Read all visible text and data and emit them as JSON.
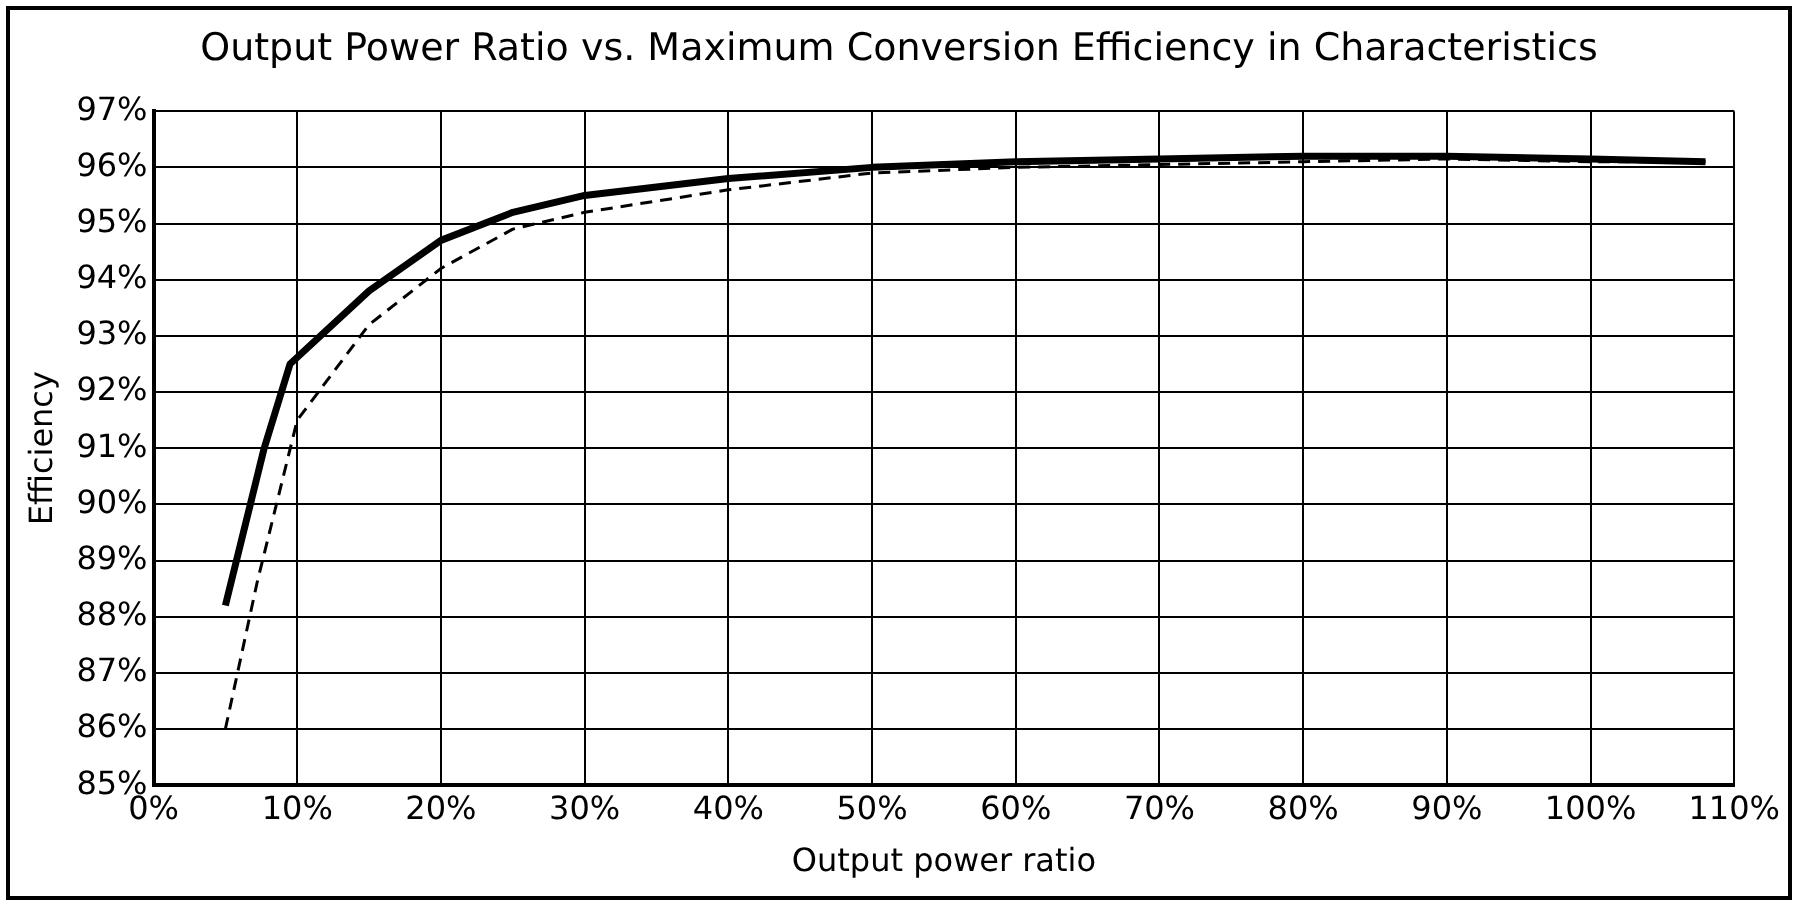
{
  "chart_data": {
    "type": "line",
    "title": "Output Power Ratio vs. Maximum Conversion Efficiency in Characteristics",
    "xlabel": "Output power ratio",
    "ylabel": "Efficiency",
    "xlim": [
      0,
      110
    ],
    "xticks": [
      {
        "value": 0,
        "label": "0%"
      },
      {
        "value": 10,
        "label": "10%"
      },
      {
        "value": 20,
        "label": "20%"
      },
      {
        "value": 30,
        "label": "30%"
      },
      {
        "value": 40,
        "label": "40%"
      },
      {
        "value": 50,
        "label": "50%"
      },
      {
        "value": 60,
        "label": "60%"
      },
      {
        "value": 70,
        "label": "70%"
      },
      {
        "value": 80,
        "label": "80%"
      },
      {
        "value": 90,
        "label": "90%"
      },
      {
        "value": 100,
        "label": "100%"
      },
      {
        "value": 110,
        "label": "110%"
      }
    ],
    "ylim": [
      85,
      97
    ],
    "yticks": [
      {
        "value": 85,
        "label": "85%"
      },
      {
        "value": 86,
        "label": "86%"
      },
      {
        "value": 87,
        "label": "87%"
      },
      {
        "value": 88,
        "label": "88%"
      },
      {
        "value": 89,
        "label": "89%"
      },
      {
        "value": 90,
        "label": "90%"
      },
      {
        "value": 91,
        "label": "91%"
      },
      {
        "value": 92,
        "label": "92%"
      },
      {
        "value": 93,
        "label": "93%"
      },
      {
        "value": 94,
        "label": "94%"
      },
      {
        "value": 95,
        "label": "95%"
      },
      {
        "value": 96,
        "label": "96%"
      },
      {
        "value": 97,
        "label": "97%"
      }
    ],
    "grid": true,
    "marker": "none",
    "series": [
      {
        "color": "#000000",
        "line_style": "solid",
        "x": [
          5,
          7.7,
          9.5,
          15,
          20,
          25,
          30,
          40,
          50,
          60,
          70,
          80,
          90,
          100,
          108
        ],
        "values": [
          88.2,
          91.0,
          92.5,
          93.8,
          94.7,
          95.2,
          95.5,
          95.8,
          96.0,
          96.1,
          96.15,
          96.2,
          96.2,
          96.15,
          96.1
        ]
      },
      {
        "color": "#000000",
        "line_style": "dashed",
        "x": [
          5,
          7.2,
          10,
          15,
          20,
          25,
          30,
          40,
          50,
          60,
          70,
          80,
          90,
          100,
          108
        ],
        "values": [
          86.0,
          88.6,
          91.5,
          93.2,
          94.2,
          94.9,
          95.2,
          95.6,
          95.9,
          96.0,
          96.05,
          96.1,
          96.15,
          96.1,
          96.1
        ]
      }
    ]
  }
}
